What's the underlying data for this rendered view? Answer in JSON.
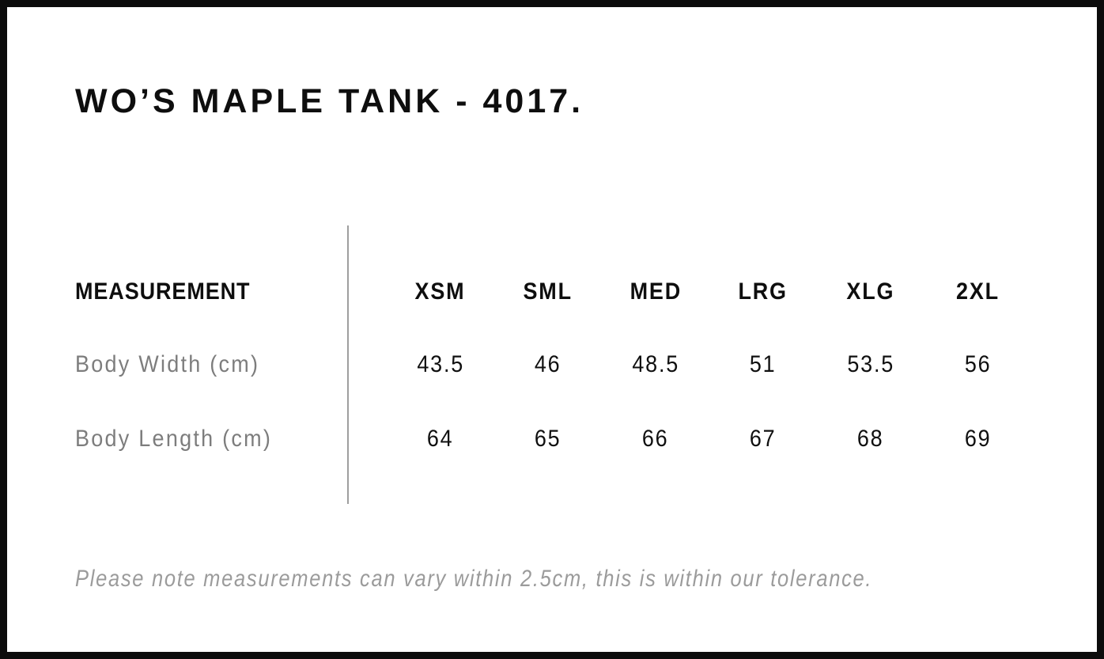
{
  "page": {
    "title": "WO’S MAPLE TANK - 4017.",
    "note": "Please note measurements can vary within 2.5cm, this is within our tolerance."
  },
  "table": {
    "measurement_label": "MEASUREMENT",
    "size_headers": [
      "XSM",
      "SML",
      "MED",
      "LRG",
      "XLG",
      "2XL"
    ],
    "rows": [
      {
        "label": "Body Width (cm)",
        "values": [
          "43.5",
          "46",
          "48.5",
          "51",
          "53.5",
          "56"
        ]
      },
      {
        "label": "Body Length (cm)",
        "values": [
          "64",
          "65",
          "66",
          "67",
          "68",
          "69"
        ]
      }
    ]
  },
  "colors": {
    "frame": "#0c0c0c",
    "heading_text": "#0e0e0e",
    "value_text": "#101010",
    "muted_label_text": "#7d7d7d",
    "note_text": "#9b9b9b",
    "divider": "#9e9e9e",
    "background": "#ffffff"
  }
}
